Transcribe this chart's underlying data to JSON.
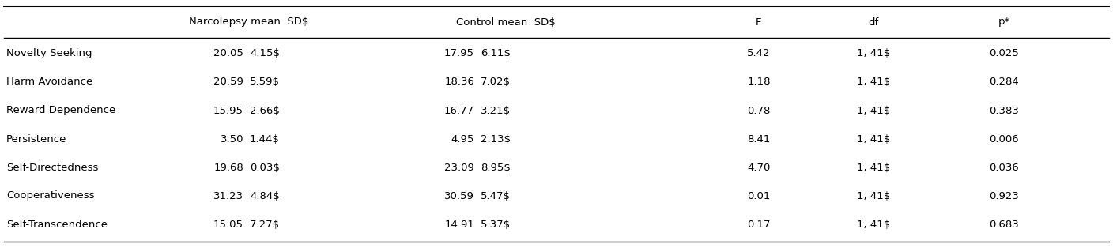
{
  "rows": [
    [
      "Novelty Seeking",
      "20.05",
      "4.15$",
      "17.95",
      "6.11$",
      "5.42",
      "1, 41$",
      "0.025"
    ],
    [
      "Harm Avoidance",
      "20.59",
      "5.59$",
      "18.36",
      "7.02$",
      "1.18",
      "1, 41$",
      "0.284"
    ],
    [
      "Reward Dependence",
      "15.95",
      "2.66$",
      "16.77",
      "3.21$",
      "0.78",
      "1, 41$",
      "0.383"
    ],
    [
      "Persistence",
      "3.50",
      "1.44$",
      "4.95",
      "2.13$",
      "8.41",
      "1, 41$",
      "0.006"
    ],
    [
      "Self-Directedness",
      "19.68",
      "0.03$",
      "23.09",
      "8.95$",
      "4.70",
      "1, 41$",
      "0.036"
    ],
    [
      "Cooperativeness",
      "31.23",
      "4.84$",
      "30.59",
      "5.47$",
      "0.01",
      "1, 41$",
      "0.923"
    ],
    [
      "Self-Transcendence",
      "15.05",
      "7.27$",
      "14.91",
      "5.37$",
      "0.17",
      "1, 41$",
      "0.683"
    ]
  ],
  "bg_color": "#ffffff",
  "line_color": "#000000",
  "font_size": 9.5,
  "header_font_size": 9.5,
  "fig_width": 14.08,
  "fig_height": 3.14,
  "dpi": 100
}
